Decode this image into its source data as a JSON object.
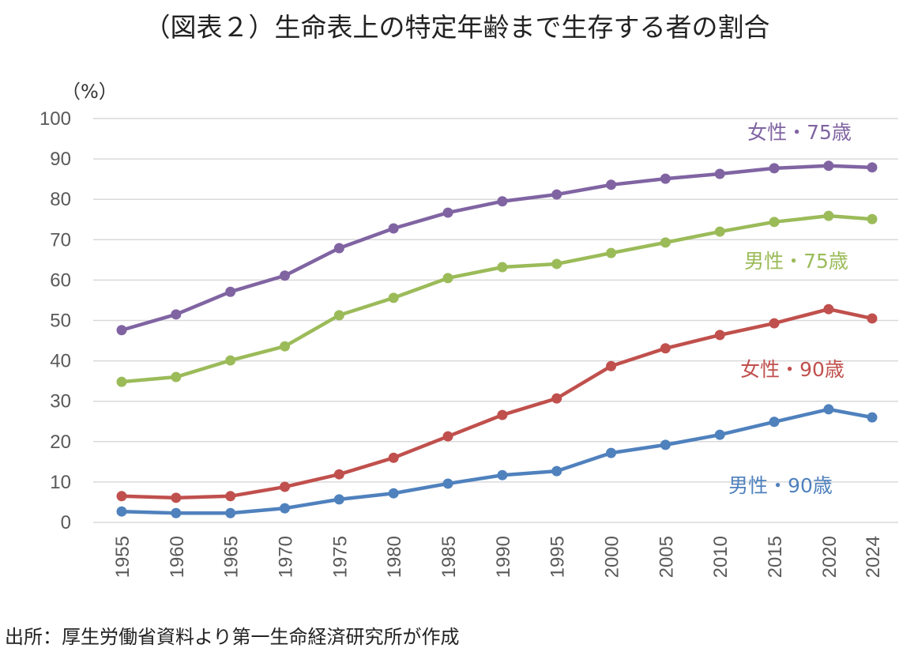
{
  "chart_data": {
    "type": "line",
    "title": "（図表２）生命表上の特定年齢まで生存する者の割合",
    "ylabel": "（%）",
    "source": "出所：厚生労働省資料より第一生命経済研究所が作成",
    "ylim": [
      0,
      100
    ],
    "yticks": [
      0,
      10,
      20,
      30,
      40,
      50,
      60,
      70,
      80,
      90,
      100
    ],
    "grid": true,
    "categories": [
      "1955",
      "1960",
      "1965",
      "1970",
      "1975",
      "1980",
      "1985",
      "1990",
      "1995",
      "2000",
      "2005",
      "2010",
      "2015",
      "2020",
      "2024"
    ],
    "series": [
      {
        "name": "女性・75歳",
        "color": "#8064a2",
        "values": [
          47.6,
          51.5,
          57.1,
          61.1,
          67.9,
          72.8,
          76.7,
          79.5,
          81.2,
          83.6,
          85.1,
          86.3,
          87.7,
          88.3,
          87.9
        ]
      },
      {
        "name": "男性・75歳",
        "color": "#9bbb59",
        "values": [
          34.8,
          36.0,
          40.1,
          43.6,
          51.3,
          55.6,
          60.5,
          63.2,
          64.0,
          66.7,
          69.3,
          72.0,
          74.4,
          75.9,
          75.1
        ]
      },
      {
        "name": "女性・90歳",
        "color": "#c0504d",
        "values": [
          6.5,
          6.1,
          6.5,
          8.8,
          11.9,
          16.0,
          21.3,
          26.6,
          30.7,
          38.7,
          43.1,
          46.4,
          49.3,
          52.8,
          50.5
        ]
      },
      {
        "name": "男性・90歳",
        "color": "#4f81bd",
        "values": [
          2.7,
          2.3,
          2.3,
          3.5,
          5.7,
          7.2,
          9.6,
          11.7,
          12.7,
          17.2,
          19.2,
          21.7,
          24.9,
          28.0,
          26.0
        ]
      }
    ]
  }
}
